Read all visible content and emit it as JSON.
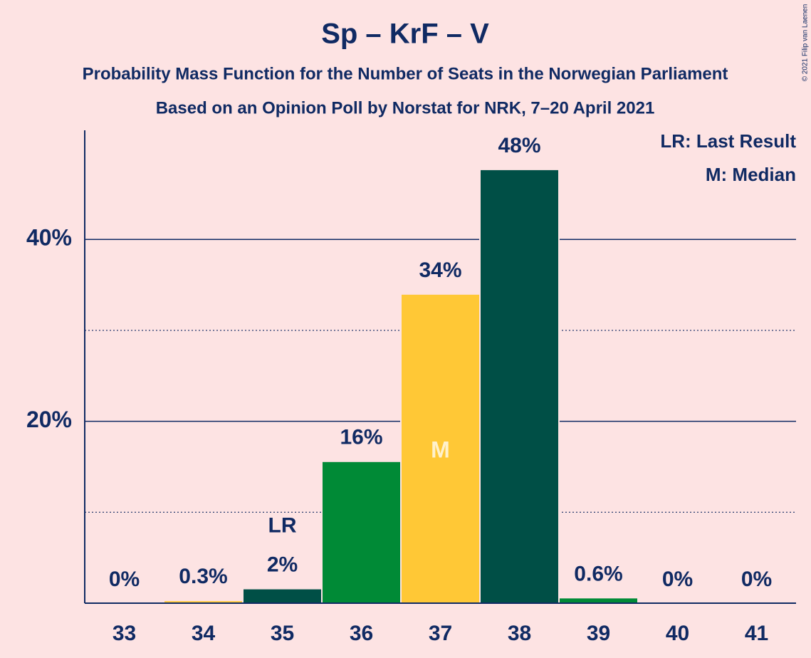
{
  "chart_data": {
    "type": "bar",
    "title": "Sp – KrF – V",
    "subtitle": [
      "Probability Mass Function for the Number of Seats in the Norwegian Parliament",
      "Based on an Opinion Poll by Norstat for NRK, 7–20 April 2021"
    ],
    "copyright": "© 2021 Filip van Laenen",
    "categories": [
      "33",
      "34",
      "35",
      "36",
      "37",
      "38",
      "39",
      "40",
      "41"
    ],
    "values": [
      0,
      0.3,
      1.6,
      15.6,
      34,
      47.7,
      0.6,
      0,
      0
    ],
    "value_labels": [
      "0%",
      "0.3%",
      "2%",
      "16%",
      "34%",
      "48%",
      "0.6%",
      "0%",
      "0%"
    ],
    "colors": [
      "#ffc836",
      "#ffc836",
      "#004f46",
      "#008a36",
      "#ffc836",
      "#004f46",
      "#008a36",
      "#ffc836",
      "#004f46"
    ],
    "ylim": [
      0,
      52
    ],
    "yticks": [
      {
        "value": 20,
        "label": "20%"
      },
      {
        "value": 40,
        "label": "40%"
      }
    ],
    "minor_yticks": [
      10,
      30
    ],
    "grid": true,
    "annotations": [
      {
        "text": "LR",
        "category": "35"
      },
      {
        "text": "M",
        "category": "37"
      }
    ],
    "legend": [
      "LR: Last Result",
      "M: Median"
    ],
    "legend_position": "upper right"
  }
}
